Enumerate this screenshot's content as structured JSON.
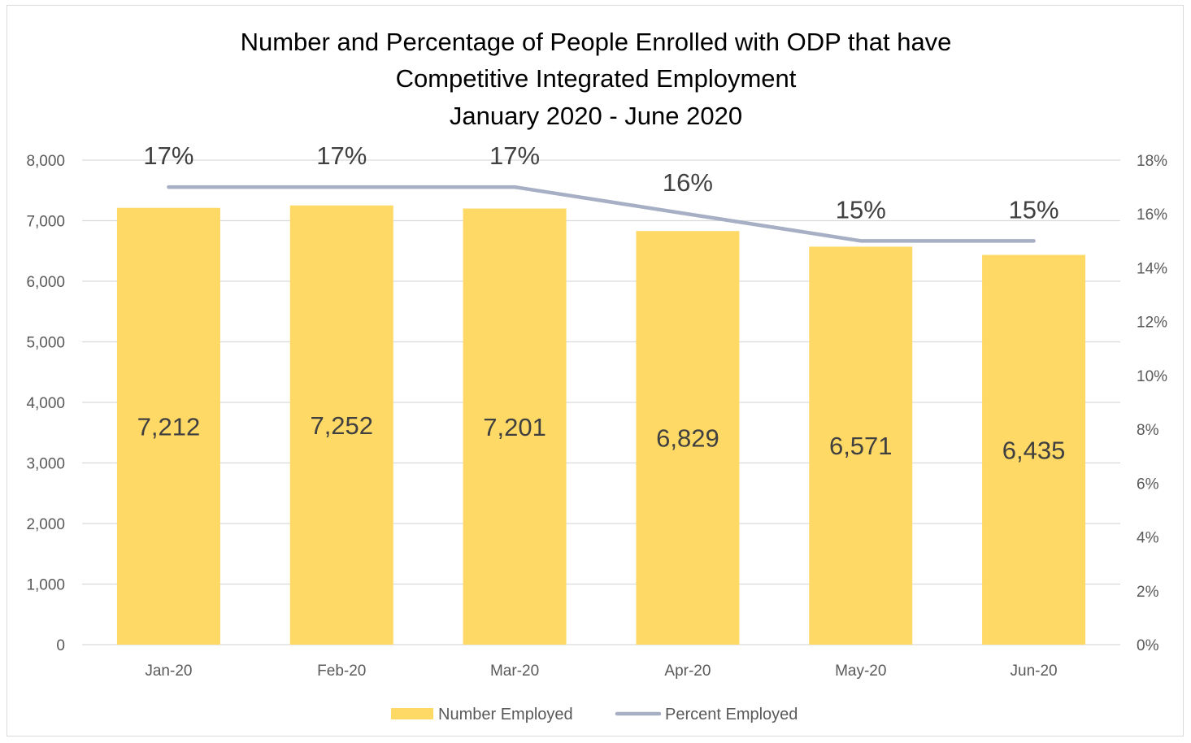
{
  "chart_data": {
    "type": "bar",
    "title": [
      "Number and Percentage of People Enrolled with ODP that have",
      "Competitive Integrated Employment",
      "January 2020 - June 2020"
    ],
    "categories": [
      "Jan-20",
      "Feb-20",
      "Mar-20",
      "Apr-20",
      "May-20",
      "Jun-20"
    ],
    "series": [
      {
        "name": "Number Employed",
        "type": "bar",
        "axis": "left",
        "color": "#FFD966",
        "values": [
          7212,
          7252,
          7201,
          6829,
          6571,
          6435
        ],
        "labels": [
          "7,212",
          "7,252",
          "7,201",
          "6,829",
          "6,571",
          "6,435"
        ]
      },
      {
        "name": "Percent Employed",
        "type": "line",
        "axis": "right",
        "color": "#A6AFC4",
        "values": [
          17,
          17,
          17,
          16,
          15,
          15
        ],
        "labels": [
          "17%",
          "17%",
          "17%",
          "16%",
          "15%",
          "15%"
        ]
      }
    ],
    "y_left": {
      "range": [
        0,
        8000
      ],
      "ticks": [
        0,
        1000,
        2000,
        3000,
        4000,
        5000,
        6000,
        7000,
        8000
      ],
      "tick_labels": [
        "0",
        "1,000",
        "2,000",
        "3,000",
        "4,000",
        "5,000",
        "6,000",
        "7,000",
        "8,000"
      ]
    },
    "y_right": {
      "range": [
        0,
        18
      ],
      "ticks": [
        0,
        2,
        4,
        6,
        8,
        10,
        12,
        14,
        16,
        18
      ],
      "tick_labels": [
        "0%",
        "2%",
        "4%",
        "6%",
        "8%",
        "10%",
        "12%",
        "14%",
        "16%",
        "18%"
      ]
    },
    "grid": true,
    "legend": "bottom"
  }
}
